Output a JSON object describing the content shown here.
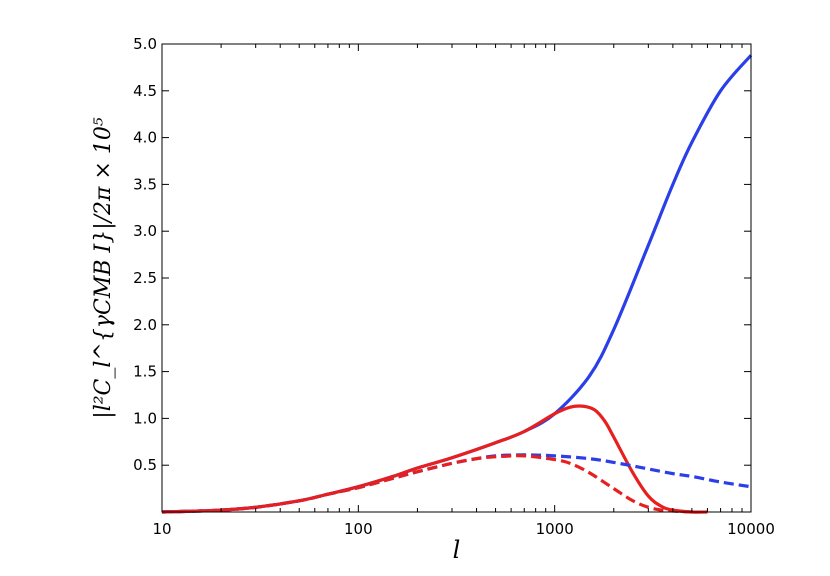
{
  "chart_data": {
    "type": "line",
    "title": "",
    "xlabel": "l",
    "ylabel": "|l²C_l^{γCMB I}|/2π × 10⁵",
    "xscale": "log",
    "xlim": [
      10,
      10000
    ],
    "ylim": [
      0,
      5.0
    ],
    "grid": false,
    "legend": "none",
    "x_ticks": [
      10,
      100,
      1000,
      10000
    ],
    "x_tick_labels": [
      "10",
      "100",
      "1000",
      "10000"
    ],
    "y_ticks": [
      0.5,
      1.0,
      1.5,
      2.0,
      2.5,
      3.0,
      3.5,
      4.0,
      4.5,
      5.0
    ],
    "y_tick_labels": [
      "0.5",
      "1.0",
      "1.5",
      "2.0",
      "2.5",
      "3.0",
      "3.5",
      "4.0",
      "4.5",
      "5.0"
    ],
    "series": [
      {
        "color": "#2a3fe8",
        "style": "solid",
        "x": [
          10,
          15,
          20,
          30,
          50,
          70,
          100,
          150,
          200,
          300,
          500,
          700,
          1000,
          1500,
          2000,
          3000,
          4000,
          5000,
          7000,
          10000
        ],
        "values": [
          0.0,
          0.01,
          0.02,
          0.05,
          0.12,
          0.19,
          0.27,
          0.38,
          0.47,
          0.58,
          0.74,
          0.86,
          1.05,
          1.45,
          1.95,
          2.85,
          3.5,
          3.95,
          4.5,
          4.88
        ]
      },
      {
        "color": "#e81f1f",
        "style": "solid",
        "x": [
          10,
          15,
          20,
          30,
          50,
          70,
          100,
          150,
          200,
          300,
          500,
          700,
          1000,
          1200,
          1400,
          1600,
          1800,
          2000,
          2500,
          3000,
          3500,
          4000,
          5000,
          6000
        ],
        "values": [
          0.0,
          0.01,
          0.02,
          0.05,
          0.12,
          0.19,
          0.27,
          0.38,
          0.47,
          0.58,
          0.74,
          0.86,
          1.05,
          1.12,
          1.13,
          1.09,
          0.97,
          0.8,
          0.42,
          0.17,
          0.06,
          0.02,
          0.0,
          0.0
        ]
      },
      {
        "color": "#2a3fe8",
        "style": "dashed",
        "x": [
          10,
          15,
          20,
          30,
          50,
          70,
          100,
          150,
          200,
          300,
          400,
          500,
          700,
          1000,
          1500,
          2000,
          3000,
          4000,
          5000,
          7000,
          10000
        ],
        "values": [
          0.0,
          0.01,
          0.02,
          0.05,
          0.12,
          0.19,
          0.26,
          0.36,
          0.43,
          0.52,
          0.57,
          0.6,
          0.61,
          0.6,
          0.57,
          0.53,
          0.46,
          0.41,
          0.38,
          0.32,
          0.27
        ]
      },
      {
        "color": "#e81f1f",
        "style": "dashed",
        "x": [
          10,
          15,
          20,
          30,
          50,
          70,
          100,
          150,
          200,
          300,
          400,
          500,
          700,
          1000,
          1200,
          1500,
          2000,
          2500,
          3000,
          3500,
          4000,
          5000
        ],
        "values": [
          0.0,
          0.01,
          0.02,
          0.05,
          0.12,
          0.19,
          0.26,
          0.36,
          0.43,
          0.52,
          0.57,
          0.59,
          0.6,
          0.56,
          0.52,
          0.42,
          0.25,
          0.12,
          0.05,
          0.02,
          0.01,
          0.0
        ]
      }
    ]
  }
}
